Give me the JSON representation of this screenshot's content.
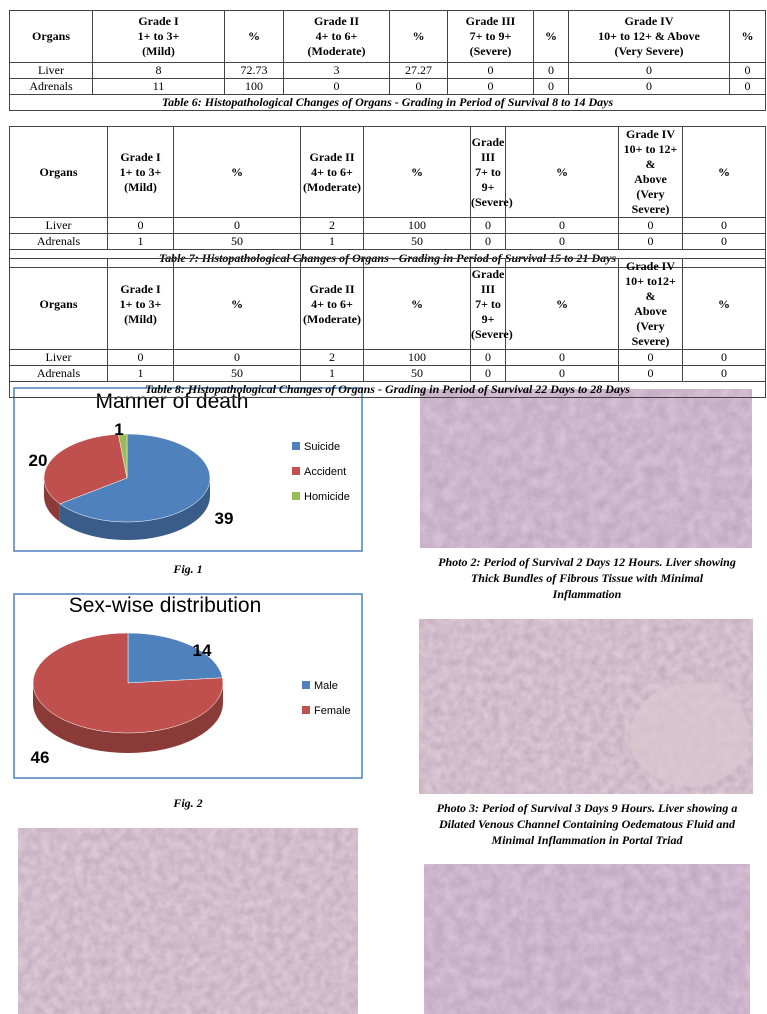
{
  "tables": [
    {
      "headers": [
        [
          "Organs"
        ],
        [
          "Grade I",
          "1+ to 3+",
          "(Mild)"
        ],
        [
          "%"
        ],
        [
          "Grade II",
          "4+ to 6+",
          "(Moderate)"
        ],
        [
          "%"
        ],
        [
          "Grade III",
          "7+ to 9+",
          "(Severe)"
        ],
        [
          "%"
        ],
        [
          "Grade IV",
          "10+ to 12+ & Above",
          "(Very Severe)"
        ],
        [
          "%"
        ]
      ],
      "rows": [
        [
          "Liver",
          8,
          72.73,
          3,
          27.27,
          0,
          0,
          0,
          0
        ],
        [
          "Adrenals",
          11,
          100,
          0,
          0,
          0,
          0,
          0,
          0
        ]
      ],
      "caption": "Table 6: Histopathological Changes of Organs - Grading in Period of Survival 8 to 14 Days"
    },
    {
      "headers": [
        [
          "Organs"
        ],
        [
          "Grade I",
          "1+ to 3+",
          "(Mild)"
        ],
        [
          "%"
        ],
        [
          "Grade II",
          "4+ to 6+",
          "(Moderate)"
        ],
        [
          "%"
        ],
        [
          "Grade III",
          "7+ to 9+",
          "(Severe)"
        ],
        [
          "%"
        ],
        [
          "Grade IV",
          "10+ to 12+ &",
          "Above",
          "(Very Severe)"
        ],
        [
          "%"
        ]
      ],
      "rows": [
        [
          "Liver",
          0,
          0,
          2,
          100,
          0,
          0,
          0,
          0
        ],
        [
          "Adrenals",
          1,
          50,
          1,
          50,
          0,
          0,
          0,
          0
        ]
      ],
      "caption": "Table 7: Histopathological Changes of Organs - Grading in Period of Survival 15 to 21 Days"
    },
    {
      "headers": [
        [
          "Organs"
        ],
        [
          "Grade I",
          "1+ to 3+",
          "(Mild)"
        ],
        [
          "%"
        ],
        [
          "Grade II",
          "4+ to 6+",
          "(Moderate)"
        ],
        [
          "%"
        ],
        [
          "Grade III",
          "7+ to 9+",
          "(Severe)"
        ],
        [
          "%"
        ],
        [
          "Grade IV",
          "10+ to12+ &",
          "Above",
          "(Very Severe)"
        ],
        [
          "%"
        ]
      ],
      "rows": [
        [
          "Liver",
          0,
          0,
          2,
          100,
          0,
          0,
          0,
          0
        ],
        [
          "Adrenals",
          1,
          50,
          1,
          50,
          0,
          0,
          0,
          0
        ]
      ],
      "caption": "Table 8: Histopathological Changes of Organs - Grading in Period of Survival 22 Days to 28 Days"
    }
  ],
  "figures": [
    {
      "type": "pie",
      "title": "Manner of death",
      "caption": "Fig. 1",
      "slices": [
        {
          "name": "Suicide",
          "value": 39,
          "color": "#4f81bd"
        },
        {
          "name": "Accident",
          "value": 20,
          "color": "#c0504d"
        },
        {
          "name": "Homicide",
          "value": 1,
          "color": "#9bbb59"
        }
      ]
    },
    {
      "type": "pie",
      "title": "Sex-wise distribution",
      "caption": "Fig. 2",
      "slices": [
        {
          "name": "Male",
          "value": 14,
          "color": "#4f81bd"
        },
        {
          "name": "Female",
          "value": 46,
          "color": "#c0504d"
        }
      ]
    }
  ],
  "photos": [
    {
      "caption": [
        "Photo 2: Period of Survival 2 Days 12 Hours. Liver showing",
        "Thick Bundles of Fibrous Tissue with Minimal",
        "Inflammation"
      ]
    },
    {
      "caption": [
        "Photo 3: Period of Survival 3 Days 9 Hours. Liver showing a",
        "Dilated Venous Channel Containing Oedematous Fluid and",
        "Minimal Inflammation in Portal Triad"
      ]
    }
  ]
}
